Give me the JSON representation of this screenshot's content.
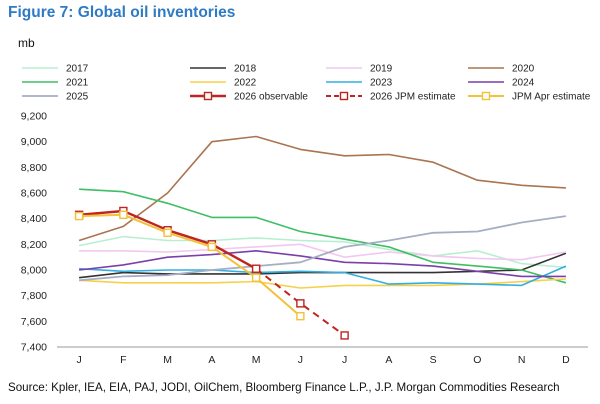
{
  "title": "Figure 7: Global oil inventories",
  "source": "Source: Kpler, IEA, EIA, PAJ, JODI, OilChem, Bloomberg Finance L.P., J.P. Morgan Commodities Research",
  "chart_data": {
    "type": "line",
    "ylabel": "mb",
    "ylim": [
      7400,
      9200
    ],
    "yticks": [
      "9,200",
      "9,000",
      "8,800",
      "8,600",
      "8,400",
      "8,200",
      "8,000",
      "7,800",
      "7,600",
      "7,400"
    ],
    "categories": [
      "J",
      "F",
      "M",
      "A",
      "M",
      "J",
      "J",
      "A",
      "S",
      "O",
      "N",
      "D"
    ],
    "legend_position": "top",
    "grid": false,
    "series": [
      {
        "name": "2017",
        "color": "#B8EFD2",
        "style": "solid",
        "marker": "none",
        "width": 1.6,
        "values": [
          8190,
          8260,
          8230,
          8230,
          8250,
          8230,
          8220,
          8160,
          8110,
          8150,
          8050,
          8020
        ]
      },
      {
        "name": "2018",
        "color": "#333333",
        "style": "solid",
        "marker": "none",
        "width": 1.6,
        "values": [
          7940,
          7980,
          7970,
          7970,
          7970,
          7980,
          7980,
          7980,
          7980,
          7990,
          8000,
          8130
        ]
      },
      {
        "name": "2019",
        "color": "#F2C7F0",
        "style": "solid",
        "marker": "none",
        "width": 1.6,
        "values": [
          8150,
          8150,
          8140,
          8160,
          8180,
          8200,
          8100,
          8140,
          8110,
          8090,
          8080,
          8140
        ]
      },
      {
        "name": "2020",
        "color": "#A9744F",
        "style": "solid",
        "marker": "none",
        "width": 1.6,
        "values": [
          8230,
          8340,
          8600,
          9000,
          9040,
          8940,
          8890,
          8900,
          8840,
          8700,
          8660,
          8640
        ]
      },
      {
        "name": "2021",
        "color": "#3FBF63",
        "style": "solid",
        "marker": "none",
        "width": 1.6,
        "values": [
          8630,
          8610,
          8520,
          8410,
          8410,
          8300,
          8240,
          8180,
          8060,
          8030,
          8000,
          7900
        ]
      },
      {
        "name": "2022",
        "color": "#F7D04A",
        "style": "solid",
        "marker": "none",
        "width": 1.6,
        "values": [
          7920,
          7900,
          7900,
          7900,
          7910,
          7860,
          7880,
          7880,
          7880,
          7890,
          7910,
          7930
        ]
      },
      {
        "name": "2023",
        "color": "#34AEE0",
        "style": "solid",
        "marker": "none",
        "width": 1.6,
        "values": [
          8010,
          7990,
          8000,
          8000,
          7980,
          7990,
          7980,
          7890,
          7900,
          7890,
          7880,
          8030
        ]
      },
      {
        "name": "2024",
        "color": "#7B3FA8",
        "style": "solid",
        "marker": "none",
        "width": 1.6,
        "values": [
          8000,
          8040,
          8100,
          8120,
          8150,
          8110,
          8060,
          8050,
          8030,
          7990,
          7950,
          7950
        ]
      },
      {
        "name": "2025",
        "color": "#A5AFC4",
        "style": "solid",
        "marker": "none",
        "width": 1.8,
        "values": [
          7920,
          7950,
          7960,
          8000,
          8030,
          8060,
          8180,
          8230,
          8290,
          8300,
          8370,
          8420
        ]
      },
      {
        "name": "2026 observable",
        "color": "#C0241E",
        "style": "solid",
        "marker": "square",
        "width": 2.4,
        "values": [
          8430,
          8460,
          8310,
          8200,
          8010,
          null,
          null,
          null,
          null,
          null,
          null,
          null
        ]
      },
      {
        "name": "2026 JPM estimate",
        "color": "#C0241E",
        "style": "dashed",
        "marker": "square",
        "width": 2.0,
        "values": [
          null,
          null,
          null,
          null,
          8010,
          7740,
          7490,
          null,
          null,
          null,
          null,
          null
        ]
      },
      {
        "name": "JPM Apr estimate",
        "color": "#F3C23A",
        "style": "solid",
        "marker": "square",
        "width": 2.0,
        "values": [
          8420,
          8430,
          8290,
          8180,
          7940,
          7640,
          null,
          null,
          null,
          null,
          null,
          null
        ]
      }
    ]
  }
}
